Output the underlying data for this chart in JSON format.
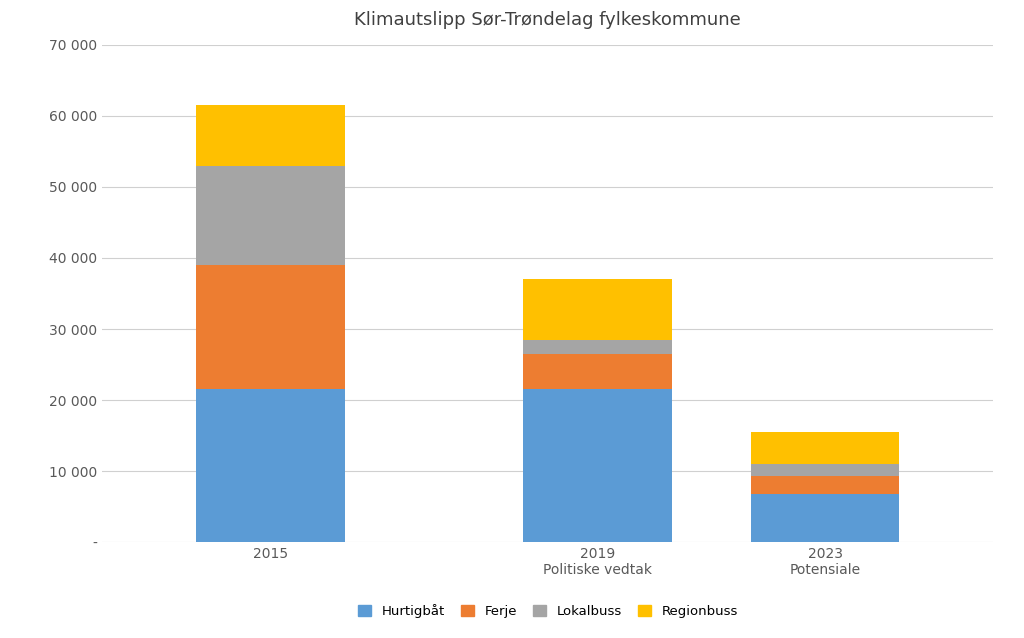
{
  "title": "Klimautslipp Sør-Trøndelag fylkeskommune",
  "categories": [
    "2015",
    "2019\nPolitiske vedtak",
    "2023\nPotensiale"
  ],
  "x_positions": [
    0.22,
    0.55,
    0.78
  ],
  "series": {
    "Hurtigbåt": [
      21500,
      21500,
      6800
    ],
    "Ferje": [
      17500,
      5000,
      2500
    ],
    "Lokalbuss": [
      14000,
      2000,
      1700
    ],
    "Regionbuss": [
      8500,
      8500,
      4500
    ]
  },
  "colors": {
    "Hurtigbåt": "#5B9BD5",
    "Ferje": "#ED7D31",
    "Lokalbuss": "#A5A5A5",
    "Regionbuss": "#FFC000"
  },
  "ylim": [
    0,
    70000
  ],
  "yticks": [
    0,
    10000,
    20000,
    30000,
    40000,
    50000,
    60000,
    70000
  ],
  "ytick_labels": [
    "-",
    "10 000",
    "20 000",
    "30 000",
    "40 000",
    "50 000",
    "60 000",
    "70 000"
  ],
  "background_color": "#FFFFFF",
  "grid_color": "#D0D0D0",
  "title_fontsize": 13,
  "bar_width": 0.15
}
